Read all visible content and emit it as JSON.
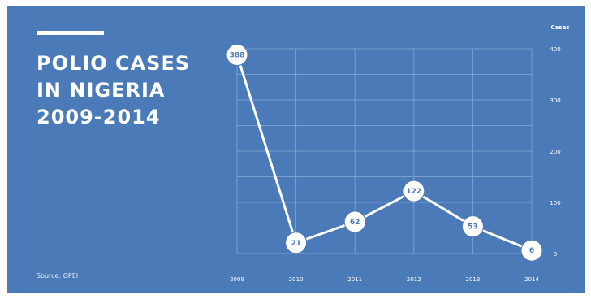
{
  "colors": {
    "background": "#4a7ab8",
    "foreground": "#ffffff",
    "grid": "#7aa0d0"
  },
  "title_lines": [
    "POLIO CASES",
    "IN NIGERIA",
    "2009-2014"
  ],
  "source": "Source: GPEI",
  "chart_data": {
    "type": "line",
    "title": "POLIO CASES IN NIGERIA 2009-2014",
    "xlabel": "",
    "ylabel": "Cases",
    "categories": [
      "2009",
      "2010",
      "2011",
      "2012",
      "2013",
      "2014"
    ],
    "series": [
      {
        "values": [
          388,
          21,
          62,
          122,
          53,
          6
        ]
      }
    ],
    "data_labels": [
      "388",
      "21",
      "62",
      "122",
      "53",
      "6"
    ],
    "ylim": [
      0,
      400
    ],
    "yticks": [
      0,
      100,
      200,
      300,
      400
    ],
    "ytick_labels": [
      "0",
      "100",
      "200",
      "300",
      "400"
    ],
    "y_axis_side": "right",
    "grid": true
  }
}
